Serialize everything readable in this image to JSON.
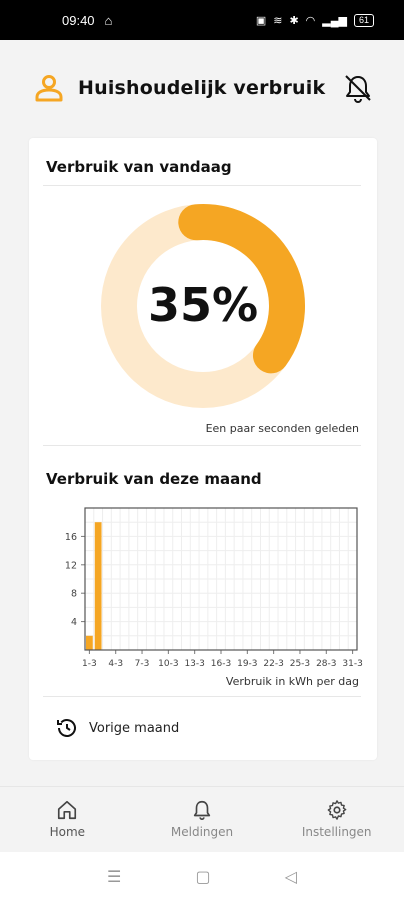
{
  "statusbar": {
    "time": "09:40",
    "battery": "61"
  },
  "header": {
    "title": "Huishoudelijk verbruik",
    "accent": "#f5a623"
  },
  "today": {
    "title": "Verbruik van vandaag",
    "percent_label": "35%",
    "percent": 0.35,
    "updated": "Een paar seconden geleden"
  },
  "month": {
    "title": "Verbruik van deze maand",
    "xlabel": "Verbruik in kWh per dag",
    "previous_label": "Vorige maand"
  },
  "chart_data": {
    "type": "bar",
    "categories": [
      "1-3",
      "2-3"
    ],
    "values": [
      2,
      18
    ],
    "x_tick_labels": [
      "1-3",
      "4-3",
      "7-3",
      "10-3",
      "13-3",
      "16-3",
      "19-3",
      "22-3",
      "25-3",
      "28-3",
      "31-3"
    ],
    "y_ticks": [
      4,
      8,
      12,
      16
    ],
    "ylim": [
      0,
      20
    ],
    "xlabel": "Verbruik in kWh per dag",
    "grid": true,
    "color": "#f5a623"
  },
  "nav": {
    "home": "Home",
    "notifications": "Meldingen",
    "settings": "Instellingen"
  }
}
